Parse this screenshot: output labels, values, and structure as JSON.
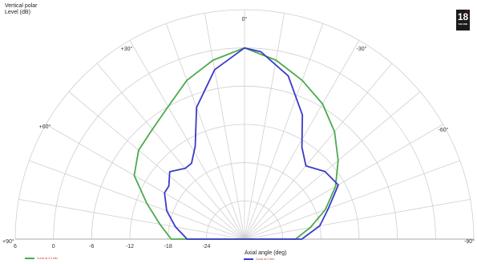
{
  "header": {
    "title": "Vertical polar",
    "subtitle": "Level (dB)"
  },
  "logo": {
    "number": "18",
    "text": "SOUND"
  },
  "chart_data": {
    "type": "polar",
    "title": "Vertical polar",
    "ylabel": "Level (dB)",
    "xlabel": "Axial angle (deg)",
    "angle_labels": [
      "0°",
      "+30°",
      "-30°",
      "+60°",
      "-60°",
      "+90°",
      "-90°"
    ],
    "radial_tick_labels": [
      "6",
      "0",
      "-6",
      "-12",
      "-18",
      "-24"
    ],
    "radial_range_db": [
      -30,
      6
    ],
    "grid": true,
    "legend_position": "bottom",
    "colors": {
      "green": "#4caa4c",
      "blue": "#3a3ac8",
      "grid": "#cfcfcf"
    },
    "series": [
      {
        "name": "Curve at 3.4 kHz",
        "color": "#4caa4c",
        "points": [
          [
            0,
            0
          ],
          [
            10,
            -1.5
          ],
          [
            20,
            -3.5
          ],
          [
            30,
            -6
          ],
          [
            40,
            -7.5
          ],
          [
            50,
            -8.3
          ],
          [
            60,
            -10
          ],
          [
            70,
            -13.7
          ],
          [
            80,
            -16.5
          ],
          [
            90,
            -18.5
          ],
          [
            -90,
            -22
          ],
          [
            -80,
            -19.5
          ],
          [
            -70,
            -16.5
          ],
          [
            -60,
            -13.5
          ],
          [
            -50,
            -10.8
          ],
          [
            -40,
            -8
          ],
          [
            -30,
            -5.5
          ],
          [
            -20,
            -3.5
          ],
          [
            -10,
            -1.5
          ]
        ]
      },
      {
        "name": "Curve at 2 kHz",
        "color": "#3a3ac8",
        "points": [
          [
            0,
            0
          ],
          [
            10,
            -3
          ],
          [
            20,
            -8
          ],
          [
            28,
            -13.5
          ],
          [
            35,
            -15.5
          ],
          [
            40,
            -15.5
          ],
          [
            48,
            -14.2
          ],
          [
            55,
            -15.5
          ],
          [
            60,
            -15.5
          ],
          [
            70,
            -17
          ],
          [
            80,
            -19
          ],
          [
            90,
            -21
          ],
          [
            -90,
            -21
          ],
          [
            -80,
            -18
          ],
          [
            -70,
            -16
          ],
          [
            -60,
            -13
          ],
          [
            -50,
            -13.5
          ],
          [
            -40,
            -15
          ],
          [
            -32,
            -13
          ],
          [
            -25,
            -8.5
          ],
          [
            -15,
            -3.5
          ],
          [
            -5,
            -0.5
          ]
        ]
      }
    ]
  }
}
